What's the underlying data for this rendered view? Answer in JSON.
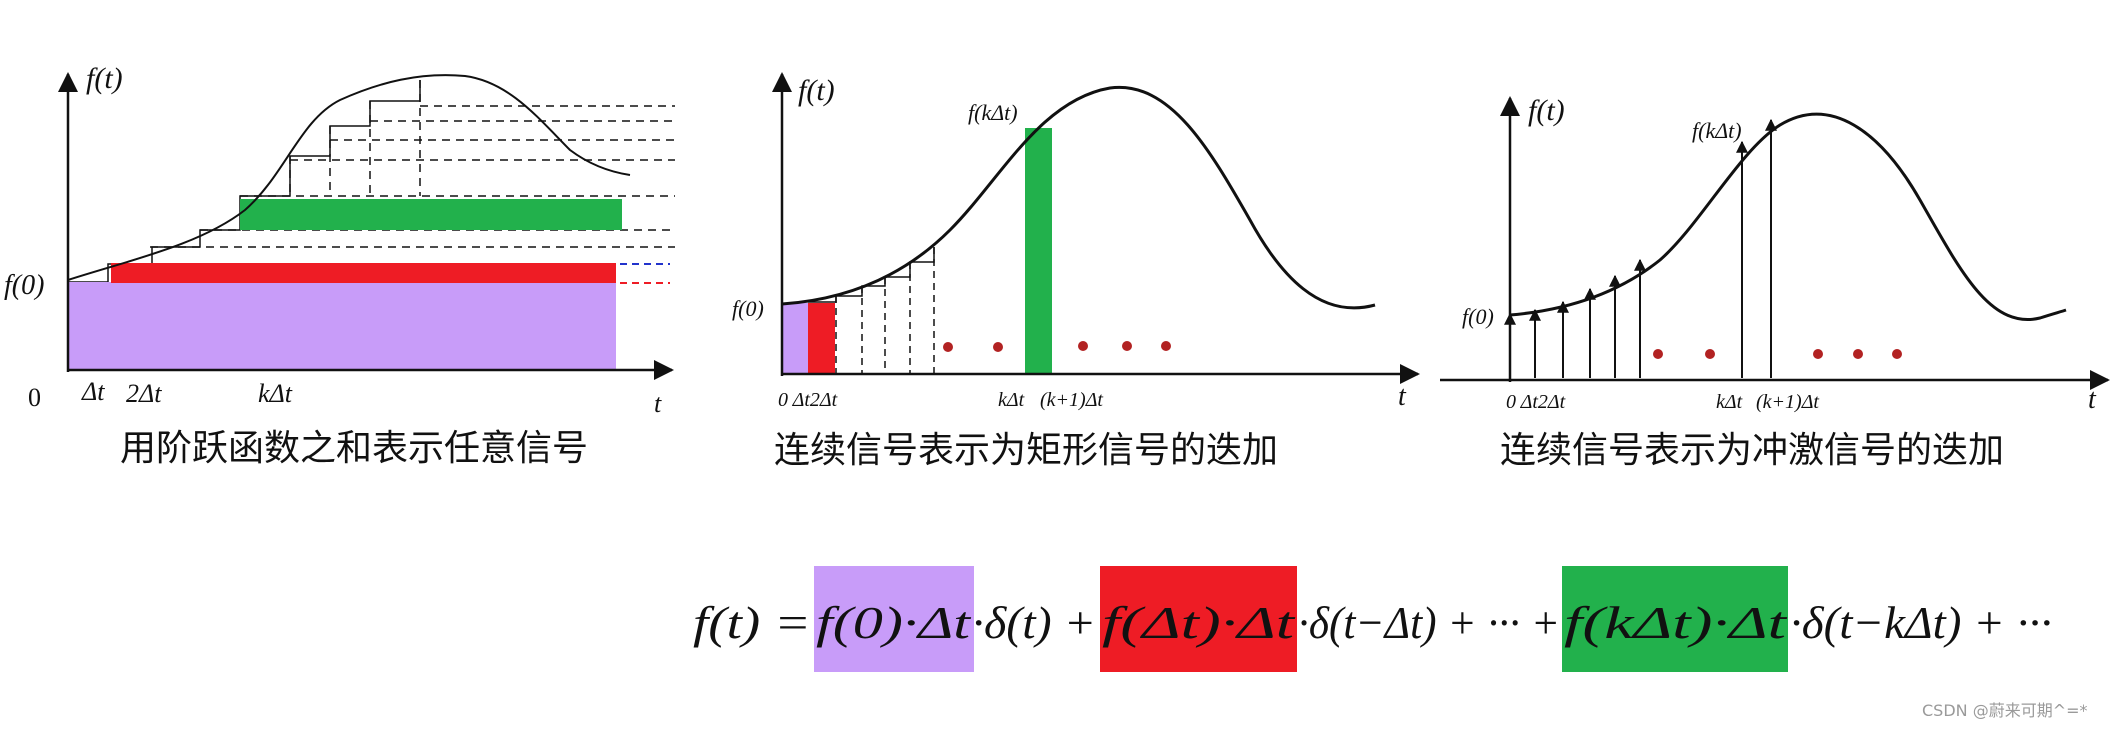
{
  "colors": {
    "purple": "#c89cf9",
    "red": "#ee1c25",
    "green": "#22b14c",
    "dot": "#b22222",
    "ink": "#111111"
  },
  "panel1": {
    "y_label": "f(t)",
    "x_label": "t",
    "f0_label": "f(0)",
    "origin_label": "0",
    "tick_dt": "Δt",
    "tick_2dt": "2Δt",
    "tick_kdt": "kΔt",
    "caption": "用阶跃函数之和表示任意信号"
  },
  "panel2": {
    "y_label": "f(t)",
    "x_label": "t",
    "f0_label": "f(0)",
    "fkdt_label": "f(kΔt)",
    "ticks_left": "0 Δt2Δt",
    "tick_kdt": "kΔt",
    "tick_k1dt": "(k+1)Δt",
    "caption": "连续信号表示为矩形信号的迭加"
  },
  "panel3": {
    "y_label": "f(t)",
    "x_label": "t",
    "f0_label": "f(0)",
    "fkdt_label": "f(kΔt)",
    "ticks_left": "0 Δt2Δt",
    "tick_kdt": "kΔt",
    "tick_k1dt": "(k+1)Δt",
    "caption": "连续信号表示为冲激信号的迭加"
  },
  "formula": {
    "lhs": "f(t) =",
    "term1": "f(0)·Δt",
    "delta1": "·δ(t) +",
    "term2": "f(Δt)·Δt",
    "delta2": "·δ(t−Δt) + ··· +",
    "term3": "f(kΔt)·Δt",
    "delta3": "·δ(t−kΔt) + ···"
  },
  "watermark": "CSDN @蔚来可期^=*"
}
